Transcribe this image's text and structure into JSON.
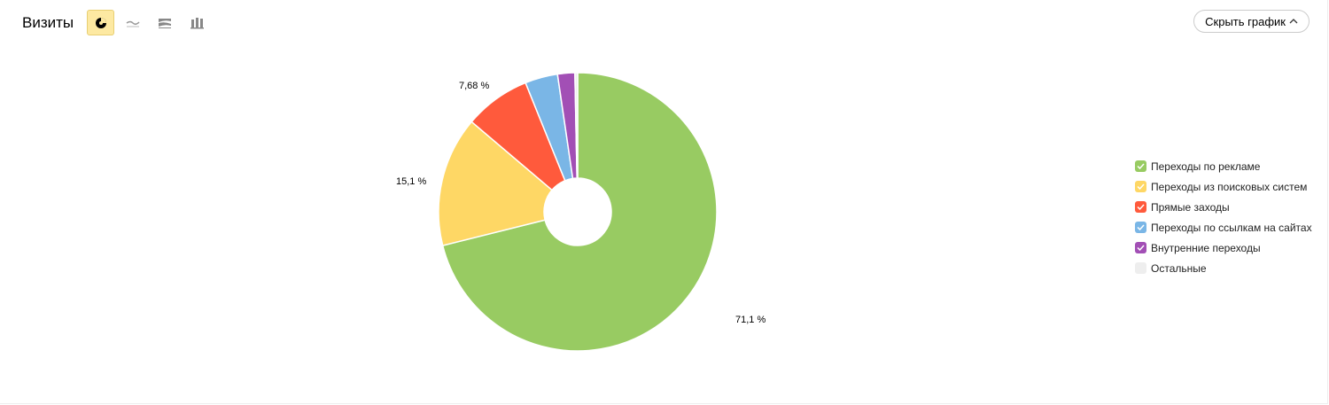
{
  "header": {
    "title": "Визиты",
    "hide_button": "Скрыть график",
    "chart_types": [
      {
        "icon": "pie-chart-icon",
        "active": true
      },
      {
        "icon": "line-chart-icon",
        "active": false
      },
      {
        "icon": "area-chart-icon",
        "active": false
      },
      {
        "icon": "bar-chart-icon",
        "active": false
      }
    ]
  },
  "chart_data": {
    "type": "pie",
    "donut": true,
    "categories": [
      "Переходы по рекламе",
      "Переходы из поисковых систем",
      "Прямые заходы",
      "Переходы по ссылкам на сайтах",
      "Внутренние переходы",
      "Остальные"
    ],
    "values": [
      71.1,
      15.1,
      7.68,
      3.8,
      2.0,
      0.32
    ],
    "colors": [
      "#98cb62",
      "#fed765",
      "#ff5a3c",
      "#7ab6e6",
      "#a24fb5",
      "#eeeeee"
    ],
    "data_labels": [
      "71,1 %",
      "15,1 %",
      "7,68 %",
      "",
      "",
      ""
    ],
    "legend_position": "right"
  }
}
